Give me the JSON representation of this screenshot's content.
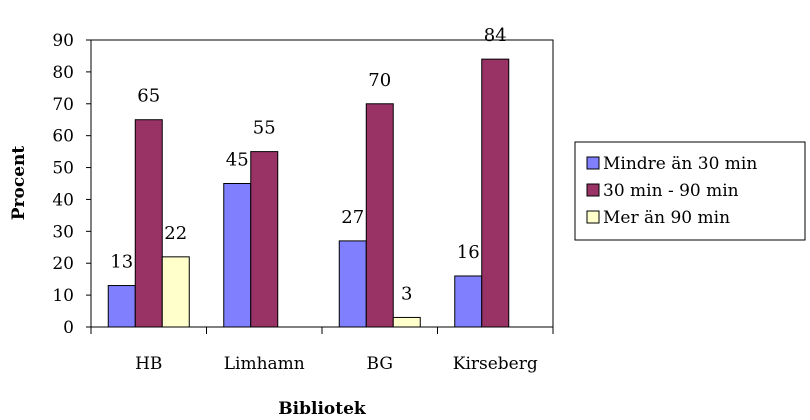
{
  "chart_data": {
    "type": "bar",
    "title": "",
    "xlabel": "Bibliotek",
    "ylabel": "Procent",
    "ylim": [
      0,
      90
    ],
    "yticks": [
      0,
      10,
      20,
      30,
      40,
      50,
      60,
      70,
      80,
      90
    ],
    "grid": false,
    "legend_position": "right",
    "categories": [
      "HB",
      "Limhamn",
      "BG",
      "Kirseberg"
    ],
    "series": [
      {
        "name": "Mindre än 30 min",
        "color": "#8080ff",
        "values": [
          13,
          45,
          27,
          16
        ]
      },
      {
        "name": "30 min - 90 min",
        "color": "#993366",
        "values": [
          65,
          55,
          70,
          84
        ]
      },
      {
        "name": "Mer än 90 min",
        "color": "#ffffcc",
        "values": [
          22,
          null,
          3,
          null
        ]
      }
    ],
    "data_labels": [
      [
        "13",
        "65",
        "22"
      ],
      [
        "45",
        "55",
        null
      ],
      [
        "27",
        "70",
        "3"
      ],
      [
        "16",
        "84",
        null
      ]
    ]
  }
}
